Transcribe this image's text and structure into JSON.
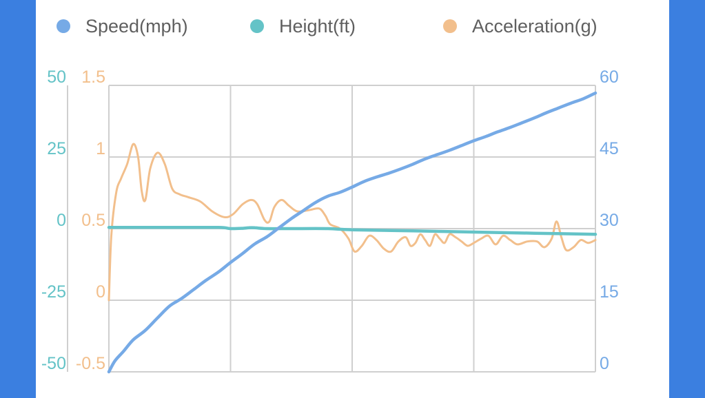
{
  "chart_data": {
    "type": "line",
    "title": "",
    "legend": {
      "placement": "top",
      "entries": [
        {
          "name": "Speed(mph)",
          "color": "#76aae6"
        },
        {
          "name": "Height(ft)",
          "color": "#64c3c7"
        },
        {
          "name": "Acceleration(g)",
          "color": "#f2bf8c"
        }
      ]
    },
    "x": {
      "ticks": [
        0,
        1,
        2,
        3,
        4
      ],
      "tick_labels": [],
      "range": [
        0,
        4
      ]
    },
    "axes": {
      "height": {
        "side": "left-outer",
        "range": [
          -50,
          50
        ],
        "ticks": [
          "50",
          "25",
          "0",
          "-25",
          "-50"
        ],
        "color": "#64c3c7"
      },
      "acceleration": {
        "side": "left-inner",
        "range": [
          -0.5,
          1.5
        ],
        "ticks": [
          "1.5",
          "1",
          "0.5",
          "0",
          "-0.5"
        ],
        "color": "#f2bf8c"
      },
      "speed": {
        "side": "right",
        "range": [
          0,
          60
        ],
        "ticks": [
          "60",
          "45",
          "30",
          "15",
          "0"
        ],
        "color": "#76aae6"
      }
    },
    "grid": true,
    "series": [
      {
        "name": "Speed(mph)",
        "axis": "speed",
        "color": "#76aae6",
        "points": [
          [
            0,
            0
          ],
          [
            0.05,
            2.3
          ],
          [
            0.12,
            4.3
          ],
          [
            0.2,
            6.7
          ],
          [
            0.3,
            8.7
          ],
          [
            0.4,
            11.3
          ],
          [
            0.5,
            13.8
          ],
          [
            0.6,
            15.4
          ],
          [
            0.7,
            17.3
          ],
          [
            0.8,
            19.2
          ],
          [
            0.9,
            20.9
          ],
          [
            1.0,
            22.9
          ],
          [
            1.1,
            24.8
          ],
          [
            1.2,
            26.8
          ],
          [
            1.3,
            28.3
          ],
          [
            1.4,
            30.2
          ],
          [
            1.5,
            32.1
          ],
          [
            1.6,
            33.8
          ],
          [
            1.7,
            35.5
          ],
          [
            1.8,
            36.8
          ],
          [
            1.9,
            37.6
          ],
          [
            2.0,
            38.7
          ],
          [
            2.1,
            39.9
          ],
          [
            2.2,
            40.8
          ],
          [
            2.3,
            41.6
          ],
          [
            2.4,
            42.5
          ],
          [
            2.5,
            43.5
          ],
          [
            2.6,
            44.6
          ],
          [
            2.7,
            45.5
          ],
          [
            2.8,
            46.4
          ],
          [
            2.9,
            47.4
          ],
          [
            3.0,
            48.4
          ],
          [
            3.1,
            49.3
          ],
          [
            3.2,
            50.3
          ],
          [
            3.3,
            51.2
          ],
          [
            3.4,
            52.2
          ],
          [
            3.5,
            53.2
          ],
          [
            3.6,
            54.3
          ],
          [
            3.7,
            55.3
          ],
          [
            3.8,
            56.3
          ],
          [
            3.9,
            57.2
          ],
          [
            4.0,
            58.4
          ]
        ]
      },
      {
        "name": "Height(ft)",
        "axis": "height",
        "color": "#64c3c7",
        "points": [
          [
            0,
            0.4
          ],
          [
            0.5,
            0.4
          ],
          [
            0.9,
            0.4
          ],
          [
            1.0,
            0.0
          ],
          [
            1.1,
            0.1
          ],
          [
            1.15,
            0.3
          ],
          [
            1.2,
            0.3
          ],
          [
            1.3,
            0.0
          ],
          [
            1.5,
            0.0
          ],
          [
            1.8,
            0.0
          ],
          [
            2.0,
            -0.4
          ],
          [
            2.5,
            -0.8
          ],
          [
            3.0,
            -1.2
          ],
          [
            3.5,
            -1.6
          ],
          [
            4.0,
            -2.0
          ]
        ]
      },
      {
        "name": "Acceleration(g)",
        "axis": "acceleration",
        "color": "#f2bf8c",
        "points": [
          [
            0,
            0
          ],
          [
            0.02,
            0.45
          ],
          [
            0.06,
            0.75
          ],
          [
            0.1,
            0.85
          ],
          [
            0.15,
            0.95
          ],
          [
            0.2,
            1.09
          ],
          [
            0.24,
            1.0
          ],
          [
            0.27,
            0.76
          ],
          [
            0.3,
            0.7
          ],
          [
            0.34,
            0.92
          ],
          [
            0.4,
            1.03
          ],
          [
            0.46,
            0.95
          ],
          [
            0.52,
            0.78
          ],
          [
            0.58,
            0.74
          ],
          [
            0.65,
            0.72
          ],
          [
            0.75,
            0.69
          ],
          [
            0.85,
            0.62
          ],
          [
            0.95,
            0.58
          ],
          [
            1.02,
            0.6
          ],
          [
            1.1,
            0.67
          ],
          [
            1.17,
            0.7
          ],
          [
            1.22,
            0.67
          ],
          [
            1.28,
            0.56
          ],
          [
            1.32,
            0.55
          ],
          [
            1.36,
            0.65
          ],
          [
            1.42,
            0.7
          ],
          [
            1.48,
            0.66
          ],
          [
            1.55,
            0.62
          ],
          [
            1.65,
            0.63
          ],
          [
            1.73,
            0.64
          ],
          [
            1.78,
            0.59
          ],
          [
            1.82,
            0.53
          ],
          [
            1.9,
            0.5
          ],
          [
            1.97,
            0.43
          ],
          [
            2.02,
            0.34
          ],
          [
            2.08,
            0.38
          ],
          [
            2.14,
            0.45
          ],
          [
            2.2,
            0.42
          ],
          [
            2.26,
            0.36
          ],
          [
            2.32,
            0.34
          ],
          [
            2.38,
            0.41
          ],
          [
            2.44,
            0.44
          ],
          [
            2.48,
            0.38
          ],
          [
            2.52,
            0.4
          ],
          [
            2.56,
            0.46
          ],
          [
            2.6,
            0.42
          ],
          [
            2.64,
            0.38
          ],
          [
            2.68,
            0.46
          ],
          [
            2.72,
            0.43
          ],
          [
            2.76,
            0.4
          ],
          [
            2.8,
            0.46
          ],
          [
            2.85,
            0.44
          ],
          [
            2.9,
            0.41
          ],
          [
            2.95,
            0.38
          ],
          [
            3.0,
            0.4
          ],
          [
            3.06,
            0.43
          ],
          [
            3.12,
            0.45
          ],
          [
            3.18,
            0.39
          ],
          [
            3.24,
            0.45
          ],
          [
            3.3,
            0.42
          ],
          [
            3.36,
            0.39
          ],
          [
            3.44,
            0.41
          ],
          [
            3.52,
            0.41
          ],
          [
            3.58,
            0.37
          ],
          [
            3.64,
            0.43
          ],
          [
            3.68,
            0.55
          ],
          [
            3.72,
            0.44
          ],
          [
            3.76,
            0.35
          ],
          [
            3.82,
            0.37
          ],
          [
            3.88,
            0.42
          ],
          [
            3.94,
            0.4
          ],
          [
            4.0,
            0.42
          ]
        ]
      }
    ]
  }
}
